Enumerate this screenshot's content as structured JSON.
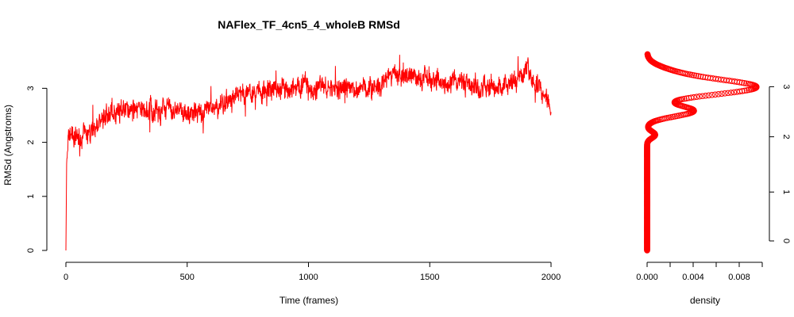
{
  "chart_data": [
    {
      "type": "line",
      "title": "NAFlex_TF_4cn5_4_wholeB RMSd",
      "xlabel": "Time (frames)",
      "ylabel": "RMSd (Angstroms)",
      "xlim": [
        0,
        2000
      ],
      "ylim": [
        0,
        3.6
      ],
      "x_ticks": [
        "0",
        "500",
        "1000",
        "1500",
        "2000"
      ],
      "y_ticks": [
        "0",
        "1",
        "2",
        "3"
      ],
      "grid": false,
      "color": "#ff0000",
      "series_profile": {
        "frames": [
          0,
          3,
          8,
          20,
          50,
          100,
          150,
          200,
          300,
          400,
          500,
          600,
          650,
          700,
          800,
          900,
          1000,
          1100,
          1200,
          1300,
          1350,
          1400,
          1500,
          1600,
          1700,
          1800,
          1850,
          1900,
          1950,
          2000
        ],
        "rmsd": [
          0.0,
          1.6,
          1.9,
          2.05,
          2.1,
          2.15,
          2.4,
          2.55,
          2.6,
          2.6,
          2.55,
          2.6,
          2.7,
          2.9,
          2.95,
          3.0,
          3.05,
          3.0,
          3.0,
          3.0,
          3.25,
          3.25,
          3.15,
          3.15,
          3.05,
          3.0,
          3.1,
          3.3,
          3.0,
          2.7
        ],
        "noise_amplitude": 0.28
      }
    },
    {
      "type": "scatter",
      "title": "",
      "xlabel": "density",
      "ylabel": "",
      "xlim": [
        0,
        0.0104
      ],
      "ylim": [
        0,
        3.6
      ],
      "x_ticks": [
        "0.000",
        "0.004",
        "0.008"
      ],
      "x_tick_values": [
        0,
        0.002,
        0.004,
        0.006,
        0.008,
        0.01
      ],
      "y_ticks": [
        "0",
        "1",
        "2",
        "3"
      ],
      "marker": "open-circle",
      "color": "#ff0000",
      "density_peaks": [
        {
          "rmsd": 2.14,
          "height": 0.0007,
          "width": 0.06
        },
        {
          "rmsd": 2.58,
          "height": 0.004,
          "width": 0.1
        },
        {
          "rmsd": 3.02,
          "height": 0.0094,
          "width": 0.14
        },
        {
          "rmsd": 3.3,
          "height": 0.0015,
          "width": 0.12
        }
      ],
      "rmsd_range": [
        0.0,
        3.63
      ]
    }
  ]
}
